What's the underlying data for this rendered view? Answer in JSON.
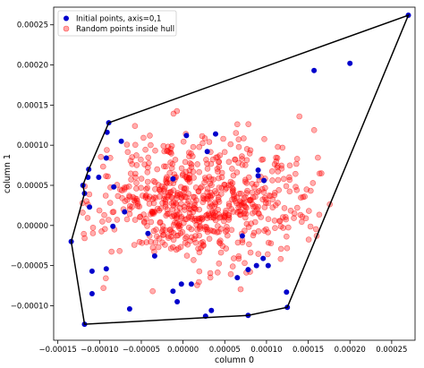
{
  "chart_data": {
    "type": "scatter",
    "title": "",
    "xlabel": "column 0",
    "ylabel": "column 1",
    "xlim": [
      -0.000155,
      0.000278
    ],
    "ylim": [
      -0.000143,
      0.000272
    ],
    "x_ticks": [
      -0.00015,
      -0.0001,
      -5e-05,
      0.0,
      5e-05,
      0.0001,
      0.00015,
      0.0002,
      0.00025
    ],
    "x_tick_labels": [
      "−0.00015",
      "−0.00010",
      "−0.00005",
      "0.00000",
      "0.00005",
      "0.00010",
      "0.00015",
      "0.00020",
      "0.00025"
    ],
    "y_ticks": [
      -0.0001,
      -5e-05,
      0.0,
      5e-05,
      0.0001,
      0.00015,
      0.0002,
      0.00025
    ],
    "y_tick_labels": [
      "−0.00010",
      "−0.00005",
      "0.00000",
      "0.00005",
      "0.00010",
      "0.00015",
      "0.00020",
      "0.00025"
    ],
    "grid": false,
    "legend_position": "top-left",
    "hull": {
      "color": "#000000",
      "x": [
        -0.000134,
        -0.000118,
        -0.00012,
        -0.000113,
        -8.9e-05,
        0.00027,
        0.000125,
        7.8e-05,
        -0.000118,
        -0.000134
      ],
      "y": [
        -2e-05,
        4e-05,
        5e-05,
        7e-05,
        0.000128,
        0.000262,
        -0.000102,
        -0.000112,
        -0.000123,
        -2e-05
      ]
    },
    "series": [
      {
        "name": "Initial points, axis=0,1",
        "color": "#0000cc",
        "marker": "filled-circle",
        "x": [
          -0.000134,
          -0.000118,
          -0.00012,
          -0.000113,
          -8.9e-05,
          0.00027,
          0.000125,
          7.8e-05,
          -0.000118,
          -0.000109,
          -0.000112,
          -0.000114,
          -9.1e-05,
          -9.2e-05,
          -7.4e-05,
          -8.3e-05,
          -7e-05,
          -8.4e-05,
          -9.2e-05,
          -0.000109,
          -0.000101,
          -6.4e-05,
          -4.2e-05,
          -3.4e-05,
          -1.2e-05,
          -7e-06,
          -2e-06,
          4e-06,
          1e-05,
          2.7e-05,
          3.4e-05,
          2.9e-05,
          6.5e-05,
          7.1e-05,
          7.8e-05,
          8.8e-05,
          9e-05,
          9.7e-05,
          0.000102,
          9e-05,
          9.6e-05,
          0.000124,
          0.000157,
          0.0002,
          -1.2e-05,
          3.9e-05
        ],
        "y": [
          -2e-05,
          4e-05,
          5e-05,
          7e-05,
          0.000128,
          0.000262,
          -0.000102,
          -0.000112,
          -0.000123,
          -8.5e-05,
          2.3e-05,
          6e-05,
          0.000116,
          8.4e-05,
          0.000105,
          4.8e-05,
          1.7e-05,
          -1e-06,
          -5.4e-05,
          -5.7e-05,
          6e-05,
          -0.000104,
          -1e-05,
          -3.8e-05,
          -8.2e-05,
          -9.5e-05,
          -7.3e-05,
          0.000112,
          -7.3e-05,
          -0.000113,
          -0.000106,
          9.2e-05,
          -6.5e-05,
          -1.3e-05,
          -5.5e-05,
          -5e-05,
          6.9e-05,
          5.6e-05,
          -5e-05,
          6.2e-05,
          -4.1e-05,
          -8.3e-05,
          0.000193,
          0.000202,
          5.8e-05,
          0.000114
        ]
      },
      {
        "name": "Random points inside hull",
        "color": "#ff0000",
        "marker": "translucent-circle",
        "count": 700
      }
    ]
  },
  "legend": {
    "items": [
      {
        "label": "Initial points, axis=0,1",
        "color": "#0000cc"
      },
      {
        "label": "Random points inside hull",
        "color": "#ff0000"
      }
    ]
  }
}
